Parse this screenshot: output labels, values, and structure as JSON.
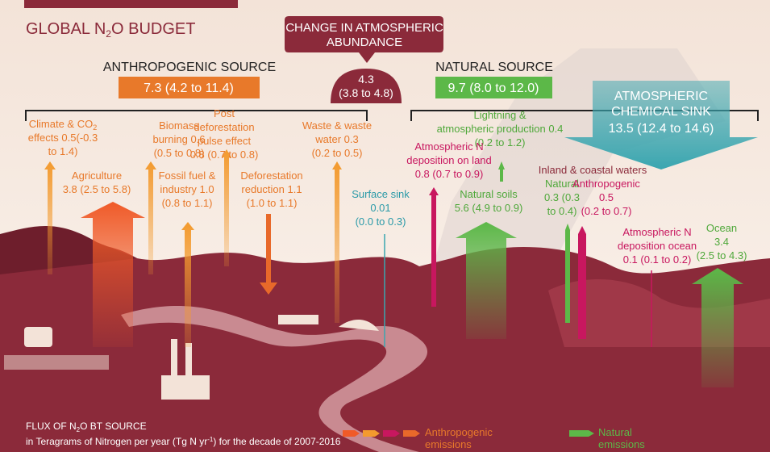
{
  "title": [
    "GLOBAL N",
    "2",
    "O BUDGET"
  ],
  "change": {
    "heading": [
      "CHANGE IN ATMOSPHERIC",
      "ABUNDANCE"
    ],
    "value": [
      "4.3",
      "(3.8 to 4.8)"
    ]
  },
  "anthropogenic": {
    "heading": "ANTHROPOGENIC SOURCE",
    "value": "7.3 (4.2 to 11.4)"
  },
  "natural": {
    "heading": "NATURAL SOURCE",
    "value": "9.7 (8.0 to 12.0)"
  },
  "sink": [
    "ATMOSPHERIC",
    "CHEMICAL SINK",
    "13.5 (12.4 to 14.6)"
  ],
  "climate": {
    "first": [
      "Climate & CO",
      "2"
    ],
    "rest": [
      "effects 0.5(-0.3",
      "to 1.4)"
    ]
  },
  "labels": [
    [
      "Biomass",
      "burning 0.6",
      "(0.5 to 0.8)"
    ],
    [
      "Post",
      "deforestation",
      "pulse effect",
      "0.8 (0.7 to 0.8)"
    ],
    [
      "Waste & waste",
      "water 0.3",
      "(0.2 to 0.5)"
    ],
    [
      "Agriculture",
      "3.8 (2.5 to 5.8)"
    ],
    [
      "Fossil fuel &",
      "industry 1.0",
      "(0.8 to 1.1)"
    ],
    [
      "Deforestation",
      "reduction 1.1",
      "(1.0 to 1.1)"
    ],
    [
      "Lightning &",
      "atmospheric production 0.4",
      "(0.2 to 1.2)"
    ],
    [
      "Atmospheric N",
      "deposition on land",
      "0.8 (0.7 to 0.9)"
    ],
    [
      "Surface sink",
      "0.01",
      "(0.0 to 0.3)"
    ],
    [
      "Natural soils",
      "5.6 (4.9 to 0.9)"
    ],
    [
      "Inland & coastal waters"
    ],
    [
      "Natural",
      "0.3 (0.3",
      "to 0.4)"
    ],
    [
      "Anthropogenic",
      "0.5",
      "(0.2 to 0.7)"
    ],
    [
      "Atmospheric N",
      "deposition ocean",
      "0.1 (0.1 to 0.2)"
    ],
    [
      "Ocean",
      "3.4",
      "(2.5 to 4.3)"
    ]
  ],
  "footer": {
    "first": [
      "FLUX OF N",
      "2",
      "O BT SOURCE"
    ],
    "second": [
      "in Teragrams of Nitrogen per year (Tg N yr",
      "-1",
      ") for the decade of 2007-2016"
    ]
  },
  "legend": {
    "anthropogenic": [
      "Anthropogenic",
      "emissions"
    ],
    "natural": [
      "Natural",
      "emissions"
    ]
  }
}
